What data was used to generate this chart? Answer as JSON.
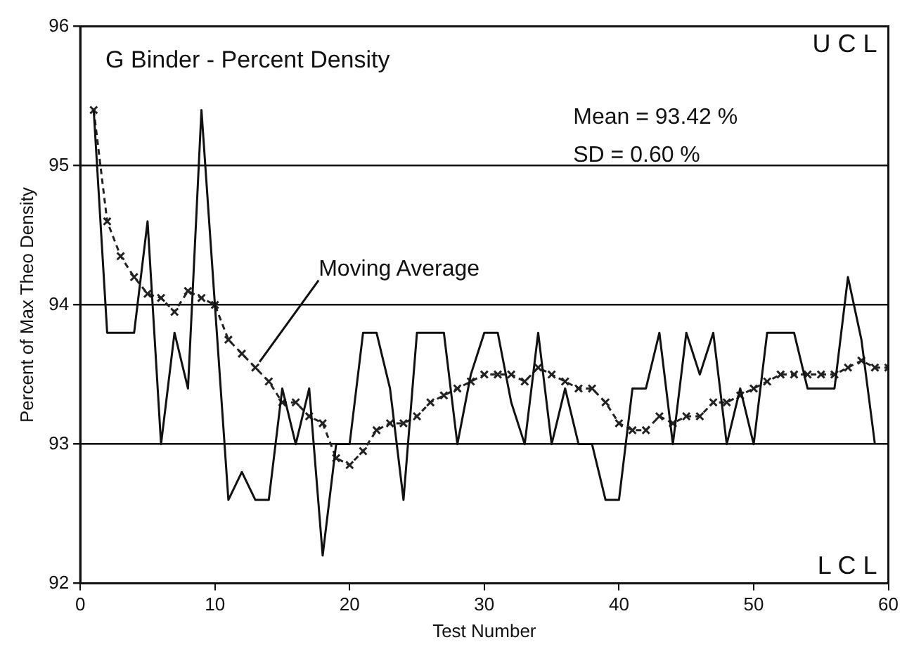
{
  "chart_data": {
    "type": "line",
    "title": "G Binder - Percent Density",
    "xlabel": "Test Number",
    "ylabel": "Percent of Max Theo Density",
    "series": [
      {
        "color": "#111111",
        "line_style": "solid",
        "marker": "none",
        "x": [
          1,
          2,
          3,
          4,
          5,
          6,
          7,
          8,
          9,
          10,
          11,
          12,
          13,
          14,
          15,
          16,
          17,
          18,
          19,
          20,
          21,
          22,
          23,
          24,
          25,
          26,
          27,
          28,
          29,
          30,
          31,
          32,
          33,
          34,
          35,
          36,
          37,
          38,
          39,
          40,
          41,
          42,
          43,
          44,
          45,
          46,
          47,
          48,
          49,
          50,
          51,
          52,
          53,
          54,
          55,
          56,
          57,
          58,
          59
        ],
        "values": [
          95.4,
          93.8,
          93.8,
          93.8,
          94.6,
          93.0,
          93.8,
          93.4,
          95.4,
          94.0,
          92.6,
          92.8,
          92.6,
          92.6,
          93.4,
          93.0,
          93.4,
          92.2,
          93.0,
          93.0,
          93.8,
          93.8,
          93.4,
          92.6,
          93.8,
          93.8,
          93.8,
          93.0,
          93.5,
          93.8,
          93.8,
          93.3,
          93.0,
          93.8,
          93.0,
          93.4,
          93.0,
          93.0,
          92.6,
          92.6,
          93.4,
          93.4,
          93.8,
          93.0,
          93.8,
          93.5,
          93.8,
          93.0,
          93.4,
          93.0,
          93.8,
          93.8,
          93.8,
          93.4,
          93.4,
          93.4,
          94.2,
          93.75,
          93.0
        ]
      },
      {
        "color": "#222222",
        "line_style": "dashed",
        "marker": "cross",
        "x": [
          1,
          2,
          3,
          4,
          5,
          6,
          7,
          8,
          9,
          10,
          11,
          12,
          13,
          14,
          15,
          16,
          17,
          18,
          19,
          20,
          21,
          22,
          23,
          24,
          25,
          26,
          27,
          28,
          29,
          30,
          31,
          32,
          33,
          34,
          35,
          36,
          37,
          38,
          39,
          40,
          41,
          42,
          43,
          44,
          45,
          46,
          47,
          48,
          49,
          50,
          51,
          52,
          53,
          54,
          55,
          56,
          57,
          58,
          59,
          60
        ],
        "values": [
          95.4,
          94.6,
          94.35,
          94.2,
          94.08,
          94.05,
          93.95,
          94.1,
          94.05,
          94.0,
          93.75,
          93.65,
          93.55,
          93.45,
          93.3,
          93.3,
          93.2,
          93.15,
          92.9,
          92.85,
          92.95,
          93.1,
          93.15,
          93.15,
          93.2,
          93.3,
          93.35,
          93.4,
          93.45,
          93.5,
          93.5,
          93.5,
          93.45,
          93.55,
          93.5,
          93.45,
          93.4,
          93.4,
          93.3,
          93.15,
          93.1,
          93.1,
          93.2,
          93.15,
          93.2,
          93.2,
          93.3,
          93.3,
          93.35,
          93.4,
          93.45,
          93.5,
          93.5,
          93.5,
          93.5,
          93.5,
          93.55,
          93.6,
          93.55,
          93.55
        ]
      }
    ],
    "xlim": [
      0,
      60
    ],
    "xticks": [
      0,
      10,
      20,
      30,
      40,
      50,
      60
    ],
    "ylim": [
      92,
      96
    ],
    "yticks": [
      92,
      93,
      94,
      95,
      96
    ],
    "grid": "y",
    "annotations": [
      {
        "text": "Moving Average",
        "x": 13,
        "y": 93.55
      },
      "U C L",
      "Mean = 93.42 %",
      "SD = 0.60 %",
      "L C L"
    ]
  }
}
